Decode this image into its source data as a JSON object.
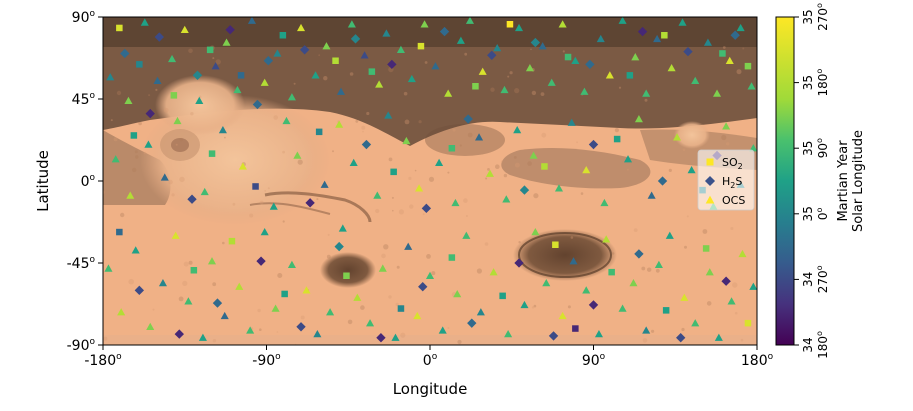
{
  "chart_data": {
    "type": "scatter",
    "title": "",
    "xlabel": "Longitude",
    "ylabel": "Latitude",
    "xlim": [
      -180,
      180
    ],
    "ylim": [
      -90,
      90
    ],
    "grid": false,
    "legend_position": "right",
    "background": "Mars surface map (MOLA-style shaded relief)",
    "x_ticks": [
      {
        "value": -180,
        "label": "-180",
        "sup": "o"
      },
      {
        "value": -90,
        "label": "-90",
        "sup": "o"
      },
      {
        "value": 0,
        "label": "0",
        "sup": "o"
      },
      {
        "value": 90,
        "label": "90",
        "sup": "o"
      },
      {
        "value": 180,
        "label": "180",
        "sup": "o"
      }
    ],
    "y_ticks": [
      {
        "value": 90,
        "label": "90",
        "sup": "o"
      },
      {
        "value": 45,
        "label": "45",
        "sup": "o"
      },
      {
        "value": 0,
        "label": "0",
        "sup": "o"
      },
      {
        "value": -45,
        "label": "-45",
        "sup": "o"
      },
      {
        "value": -90,
        "label": "-90",
        "sup": "o"
      }
    ],
    "legend": [
      {
        "name": "SO",
        "sub": "2",
        "marker": "square",
        "color": "#fde725"
      },
      {
        "name": "H",
        "sub": "2",
        "tail": "S",
        "marker": "diamond",
        "color": "#3b528b"
      },
      {
        "name": "OCS",
        "marker": "triangle",
        "color": "#fde725"
      }
    ],
    "colorbar": {
      "label_line1": "Martian Year",
      "label_line2": "Solar Longitude",
      "colormap": "viridis",
      "ticks": [
        {
          "value": 0.0,
          "year": "34",
          "ls": "180",
          "sup": "o"
        },
        {
          "value": 0.2,
          "year": "34",
          "ls": "270",
          "sup": "o"
        },
        {
          "value": 0.4,
          "year": "35",
          "ls": "0",
          "sup": "o"
        },
        {
          "value": 0.6,
          "year": "35",
          "ls": "90",
          "sup": "o"
        },
        {
          "value": 0.8,
          "year": "35",
          "ls": "180",
          "sup": "o"
        },
        {
          "value": 1.0,
          "year": "35",
          "ls": "270",
          "sup": "o"
        }
      ]
    },
    "series": [
      {
        "name": "SO2",
        "marker": "square",
        "points": [
          [
            -171,
            84,
            0.9
          ],
          [
            -160,
            64,
            0.4
          ],
          [
            -141,
            47,
            0.7
          ],
          [
            -121,
            72,
            0.6
          ],
          [
            -104,
            58,
            0.3
          ],
          [
            -81,
            80,
            0.5
          ],
          [
            -52,
            66,
            0.8
          ],
          [
            -32,
            60,
            0.6
          ],
          [
            -5,
            74,
            0.9
          ],
          [
            25,
            52,
            0.7
          ],
          [
            44,
            86,
            1.0
          ],
          [
            76,
            68,
            0.6
          ],
          [
            110,
            58,
            0.5
          ],
          [
            129,
            80,
            0.8
          ],
          [
            161,
            70,
            0.6
          ],
          [
            175,
            63,
            0.7
          ],
          [
            -163,
            25,
            0.5
          ],
          [
            -120,
            15,
            0.6
          ],
          [
            -96,
            -3,
            0.2
          ],
          [
            -61,
            27,
            0.4
          ],
          [
            -20,
            5,
            0.5
          ],
          [
            12,
            18,
            0.6
          ],
          [
            63,
            8,
            0.8
          ],
          [
            103,
            23,
            0.5
          ],
          [
            150,
            -5,
            0.4
          ],
          [
            -171,
            -28,
            0.3
          ],
          [
            -130,
            -49,
            0.6
          ],
          [
            -109,
            -33,
            0.8
          ],
          [
            -80,
            -62,
            0.5
          ],
          [
            -46,
            -52,
            0.7
          ],
          [
            -16,
            -70,
            0.4
          ],
          [
            12,
            -42,
            0.6
          ],
          [
            40,
            -63,
            0.5
          ],
          [
            69,
            -35,
            0.9
          ],
          [
            80,
            -81,
            0.1
          ],
          [
            100,
            -50,
            0.6
          ],
          [
            130,
            -71,
            0.5
          ],
          [
            152,
            -37,
            0.7
          ],
          [
            175,
            -78,
            0.9
          ]
        ]
      },
      {
        "name": "H2S",
        "marker": "diamond",
        "points": [
          [
            -168,
            70,
            0.3
          ],
          [
            -149,
            79,
            0.2
          ],
          [
            -128,
            58,
            0.4
          ],
          [
            -110,
            83,
            0.1
          ],
          [
            -89,
            66,
            0.3
          ],
          [
            -69,
            72,
            0.2
          ],
          [
            -41,
            78,
            0.4
          ],
          [
            -21,
            64,
            0.1
          ],
          [
            8,
            82,
            0.3
          ],
          [
            34,
            69,
            0.2
          ],
          [
            58,
            76,
            0.4
          ],
          [
            88,
            64,
            0.3
          ],
          [
            117,
            82,
            0.1
          ],
          [
            142,
            71,
            0.2
          ],
          [
            168,
            80,
            0.3
          ],
          [
            -154,
            37,
            0.1
          ],
          [
            -131,
            -10,
            0.2
          ],
          [
            -95,
            42,
            0.3
          ],
          [
            -66,
            -12,
            0.1
          ],
          [
            -35,
            20,
            0.3
          ],
          [
            -2,
            -15,
            0.2
          ],
          [
            21,
            34,
            0.3
          ],
          [
            52,
            -5,
            0.4
          ],
          [
            90,
            20,
            0.2
          ],
          [
            128,
            0,
            0.3
          ],
          [
            158,
            14,
            0.1
          ],
          [
            -160,
            -60,
            0.2
          ],
          [
            -138,
            -84,
            0.1
          ],
          [
            -117,
            -67,
            0.3
          ],
          [
            -93,
            -44,
            0.1
          ],
          [
            -71,
            -80,
            0.2
          ],
          [
            -50,
            -36,
            0.4
          ],
          [
            -27,
            -86,
            0.1
          ],
          [
            -4,
            -58,
            0.2
          ],
          [
            23,
            -78,
            0.3
          ],
          [
            49,
            -45,
            0.1
          ],
          [
            68,
            -85,
            0.2
          ],
          [
            90,
            -68,
            0.1
          ],
          [
            115,
            -40,
            0.3
          ],
          [
            138,
            -86,
            0.2
          ],
          [
            163,
            -55,
            0.1
          ]
        ]
      },
      {
        "name": "OCS",
        "marker": "triangle",
        "points": [
          [
            -176,
            57,
            0.4
          ],
          [
            -166,
            44,
            0.7
          ],
          [
            -157,
            87,
            0.5
          ],
          [
            -150,
            55,
            0.3
          ],
          [
            -142,
            67,
            0.6
          ],
          [
            -135,
            83,
            0.9
          ],
          [
            -127,
            44,
            0.5
          ],
          [
            -118,
            63,
            0.2
          ],
          [
            -112,
            76,
            0.7
          ],
          [
            -106,
            50,
            0.6
          ],
          [
            -98,
            88,
            0.3
          ],
          [
            -91,
            54,
            0.8
          ],
          [
            -84,
            70,
            0.4
          ],
          [
            -76,
            46,
            0.6
          ],
          [
            -71,
            84,
            0.9
          ],
          [
            -63,
            58,
            0.5
          ],
          [
            -57,
            74,
            0.7
          ],
          [
            -49,
            49,
            0.3
          ],
          [
            -43,
            86,
            0.6
          ],
          [
            -36,
            69,
            0.2
          ],
          [
            -28,
            53,
            0.8
          ],
          [
            -24,
            81,
            0.4
          ],
          [
            -16,
            72,
            0.6
          ],
          [
            -10,
            56,
            0.5
          ],
          [
            -3,
            86,
            0.7
          ],
          [
            3,
            63,
            0.3
          ],
          [
            10,
            48,
            0.8
          ],
          [
            17,
            77,
            0.5
          ],
          [
            22,
            88,
            0.6
          ],
          [
            29,
            60,
            0.9
          ],
          [
            37,
            73,
            0.4
          ],
          [
            41,
            50,
            0.6
          ],
          [
            49,
            84,
            0.5
          ],
          [
            55,
            62,
            0.7
          ],
          [
            62,
            74,
            0.3
          ],
          [
            67,
            54,
            0.6
          ],
          [
            73,
            86,
            0.8
          ],
          [
            80,
            66,
            0.5
          ],
          [
            85,
            49,
            0.6
          ],
          [
            94,
            78,
            0.4
          ],
          [
            99,
            58,
            0.9
          ],
          [
            106,
            88,
            0.5
          ],
          [
            113,
            68,
            0.7
          ],
          [
            119,
            48,
            0.6
          ],
          [
            125,
            78,
            0.3
          ],
          [
            133,
            62,
            0.8
          ],
          [
            139,
            87,
            0.5
          ],
          [
            146,
            55,
            0.6
          ],
          [
            153,
            76,
            0.4
          ],
          [
            158,
            48,
            0.7
          ],
          [
            165,
            66,
            0.9
          ],
          [
            171,
            84,
            0.5
          ],
          [
            177,
            52,
            0.6
          ],
          [
            -173,
            12,
            0.6
          ],
          [
            -165,
            -8,
            0.8
          ],
          [
            -155,
            20,
            0.5
          ],
          [
            -146,
            2,
            0.3
          ],
          [
            -139,
            33,
            0.7
          ],
          [
            -124,
            -6,
            0.6
          ],
          [
            -114,
            28,
            0.4
          ],
          [
            -103,
            8,
            0.9
          ],
          [
            -86,
            -14,
            0.5
          ],
          [
            -79,
            33,
            0.6
          ],
          [
            -73,
            14,
            0.7
          ],
          [
            -58,
            -2,
            0.3
          ],
          [
            -50,
            31,
            0.8
          ],
          [
            -42,
            10,
            0.5
          ],
          [
            -29,
            -8,
            0.6
          ],
          [
            -23,
            36,
            0.4
          ],
          [
            -13,
            22,
            0.7
          ],
          [
            -6,
            -4,
            0.9
          ],
          [
            5,
            10,
            0.5
          ],
          [
            14,
            -12,
            0.6
          ],
          [
            27,
            24,
            0.3
          ],
          [
            33,
            4,
            0.8
          ],
          [
            42,
            -10,
            0.6
          ],
          [
            48,
            28,
            0.5
          ],
          [
            57,
            14,
            0.7
          ],
          [
            71,
            -4,
            0.6
          ],
          [
            78,
            32,
            0.4
          ],
          [
            86,
            6,
            0.9
          ],
          [
            96,
            -12,
            0.6
          ],
          [
            109,
            12,
            0.5
          ],
          [
            115,
            34,
            0.7
          ],
          [
            122,
            -8,
            0.3
          ],
          [
            136,
            24,
            0.8
          ],
          [
            144,
            6,
            0.5
          ],
          [
            156,
            -14,
            0.6
          ],
          [
            163,
            30,
            0.7
          ],
          [
            171,
            -2,
            0.4
          ],
          [
            178,
            18,
            0.6
          ],
          [
            -177,
            -48,
            0.6
          ],
          [
            -170,
            -72,
            0.8
          ],
          [
            -162,
            -38,
            0.5
          ],
          [
            -154,
            -80,
            0.7
          ],
          [
            -147,
            -56,
            0.4
          ],
          [
            -140,
            -30,
            0.9
          ],
          [
            -133,
            -66,
            0.6
          ],
          [
            -125,
            -86,
            0.5
          ],
          [
            -120,
            -44,
            0.7
          ],
          [
            -113,
            -74,
            0.3
          ],
          [
            -105,
            -58,
            0.8
          ],
          [
            -99,
            -82,
            0.6
          ],
          [
            -91,
            -28,
            0.5
          ],
          [
            -85,
            -70,
            0.7
          ],
          [
            -76,
            -46,
            0.6
          ],
          [
            -68,
            -60,
            0.9
          ],
          [
            -62,
            -84,
            0.4
          ],
          [
            -55,
            -72,
            0.6
          ],
          [
            -48,
            -26,
            0.5
          ],
          [
            -40,
            -64,
            0.8
          ],
          [
            -33,
            -78,
            0.6
          ],
          [
            -26,
            -48,
            0.7
          ],
          [
            -19,
            -86,
            0.5
          ],
          [
            -12,
            -36,
            0.3
          ],
          [
            -7,
            -74,
            0.9
          ],
          [
            0,
            -52,
            0.6
          ],
          [
            7,
            -82,
            0.5
          ],
          [
            15,
            -62,
            0.7
          ],
          [
            20,
            -30,
            0.6
          ],
          [
            28,
            -72,
            0.4
          ],
          [
            35,
            -50,
            0.8
          ],
          [
            43,
            -84,
            0.6
          ],
          [
            52,
            -68,
            0.5
          ],
          [
            58,
            -28,
            0.7
          ],
          [
            64,
            -56,
            0.6
          ],
          [
            73,
            -74,
            0.9
          ],
          [
            79,
            -44,
            0.3
          ],
          [
            86,
            -60,
            0.6
          ],
          [
            93,
            -84,
            0.5
          ],
          [
            97,
            -32,
            0.8
          ],
          [
            106,
            -70,
            0.6
          ],
          [
            112,
            -56,
            0.7
          ],
          [
            119,
            -82,
            0.4
          ],
          [
            126,
            -46,
            0.6
          ],
          [
            132,
            -30,
            0.5
          ],
          [
            140,
            -64,
            0.9
          ],
          [
            146,
            -78,
            0.6
          ],
          [
            154,
            -50,
            0.7
          ],
          [
            159,
            -86,
            0.5
          ],
          [
            166,
            -66,
            0.6
          ],
          [
            172,
            -40,
            0.8
          ],
          [
            178,
            -58,
            0.5
          ]
        ]
      }
    ]
  }
}
